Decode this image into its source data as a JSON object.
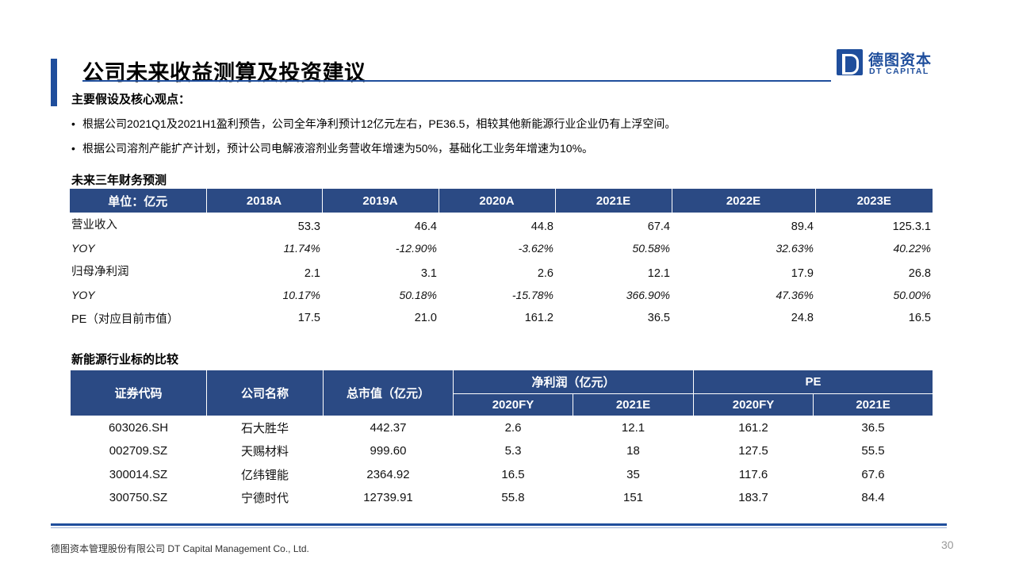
{
  "page": {
    "title": "公司未来收益测算及投资建议",
    "logo_cn": "德图资本",
    "logo_en": "DT CAPITAL",
    "page_number": "30",
    "footer": "德图资本管理股份有限公司  DT Capital Management  Co., Ltd."
  },
  "assumptions": {
    "heading": "主要假设及核心观点：",
    "bullet_symbol": "•",
    "items": [
      "根据公司2021Q1及2021H1盈利预告，公司全年净利预计12亿元左右，PE36.5，相较其他新能源行业企业仍有上浮空间。",
      "根据公司溶剂产能扩产计划，预计公司电解液溶剂业务营收年增速为50%，基础化工业务年增速为10%。"
    ]
  },
  "forecast": {
    "heading": "未来三年财务预测",
    "columns": [
      "单位：亿元",
      "2018A",
      "2019A",
      "2020A",
      "2021E",
      "2022E",
      "2023E"
    ],
    "rows": [
      {
        "type": "main",
        "cells": [
          "营业收入",
          "53.3",
          "46.4",
          "44.8",
          "67.4",
          "89.4",
          "125.3.1"
        ]
      },
      {
        "type": "yoy",
        "cells": [
          "YOY",
          "11.74%",
          "-12.90%",
          "-3.62%",
          "50.58%",
          "32.63%",
          "40.22%"
        ]
      },
      {
        "type": "main",
        "cells": [
          "归母净利润",
          "2.1",
          "3.1",
          "2.6",
          "12.1",
          "17.9",
          "26.8"
        ]
      },
      {
        "type": "yoy",
        "cells": [
          "YOY",
          "10.17%",
          "50.18%",
          "-15.78%",
          "366.90%",
          "47.36%",
          "50.00%"
        ]
      },
      {
        "type": "pe",
        "cells": [
          "PE（对应目前市值）",
          "17.5",
          "21.0",
          "161.2",
          "36.5",
          "24.8",
          "16.5"
        ]
      }
    ]
  },
  "comparison": {
    "heading": "新能源行业标的比较",
    "headers": {
      "code": "证券代码",
      "name": "公司名称",
      "mktcap": "总市值（亿元）",
      "profit": "净利润（亿元）",
      "pe": "PE",
      "profit_2020": "2020FY",
      "profit_2021": "2021E",
      "pe_2020": "2020FY",
      "pe_2021": "2021E"
    },
    "rows": [
      [
        "603026.SH",
        "石大胜华",
        "442.37",
        "2.6",
        "12.1",
        "161.2",
        "36.5"
      ],
      [
        "002709.SZ",
        "天赐材料",
        "999.60",
        "5.3",
        "18",
        "127.5",
        "55.5"
      ],
      [
        "300014.SZ",
        "亿纬锂能",
        "2364.92",
        "16.5",
        "35",
        "117.6",
        "67.6"
      ],
      [
        "300750.SZ",
        "宁德时代",
        "12739.91",
        "55.8",
        "151",
        "183.7",
        "84.4"
      ]
    ]
  },
  "colors": {
    "brand_blue": "#1f4e9c",
    "table_header": "#2b4a84"
  }
}
